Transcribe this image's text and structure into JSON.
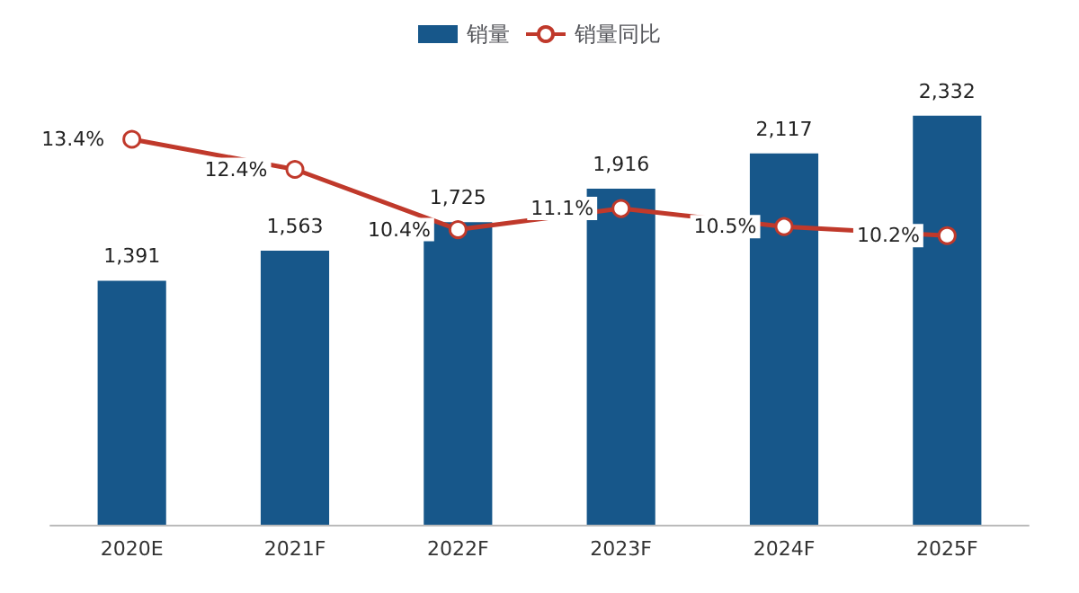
{
  "chart_data": {
    "type": "bar",
    "categories": [
      "2020E",
      "2021F",
      "2022F",
      "2023F",
      "2024F",
      "2025F"
    ],
    "series": [
      {
        "name": "销量",
        "color": "#17578a",
        "values": [
          1391,
          1563,
          1725,
          1916,
          2117,
          2332
        ],
        "value_labels": [
          "1,391",
          "1,563",
          "1,725",
          "1,916",
          "2,117",
          "2,332"
        ]
      },
      {
        "name": "销量同比",
        "type": "line",
        "axis": "y2",
        "color": "#c0392b",
        "values": [
          13.4,
          12.4,
          10.4,
          11.1,
          10.5,
          10.2
        ],
        "value_labels": [
          "13.4%",
          "12.4%",
          "10.4%",
          "11.1%",
          "10.5%",
          "10.2%"
        ]
      }
    ],
    "marker": "circle",
    "legend": "top"
  }
}
